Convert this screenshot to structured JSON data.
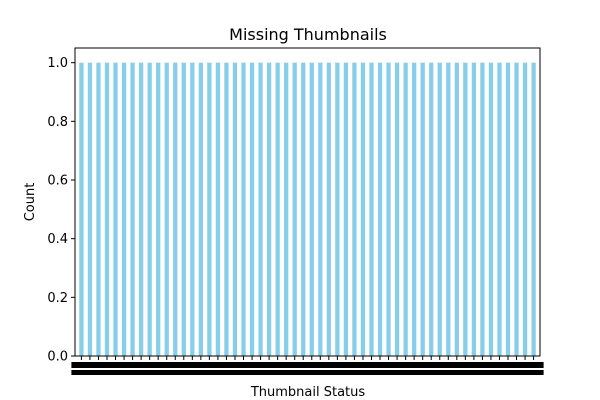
{
  "chart_data": {
    "type": "bar",
    "title": "Missing Thumbnails",
    "xlabel": "Thumbnail Status",
    "ylabel": "Count",
    "ylim": [
      0,
      1.05
    ],
    "yticks": [
      "0.0",
      "0.2",
      "0.4",
      "0.6",
      "0.8",
      "1.0"
    ],
    "bar_color": "#87ceeb",
    "values": [
      1,
      1,
      1,
      1,
      1,
      1,
      1,
      1,
      1,
      1,
      1,
      1,
      1,
      1,
      1,
      1,
      1,
      1,
      1,
      1,
      1,
      1,
      1,
      1,
      1,
      1,
      1,
      1,
      1,
      1,
      1,
      1,
      1,
      1,
      1,
      1,
      1,
      1,
      1,
      1,
      1,
      1,
      1,
      1,
      1,
      1,
      1,
      1,
      1,
      1,
      1,
      1,
      1,
      1
    ]
  }
}
